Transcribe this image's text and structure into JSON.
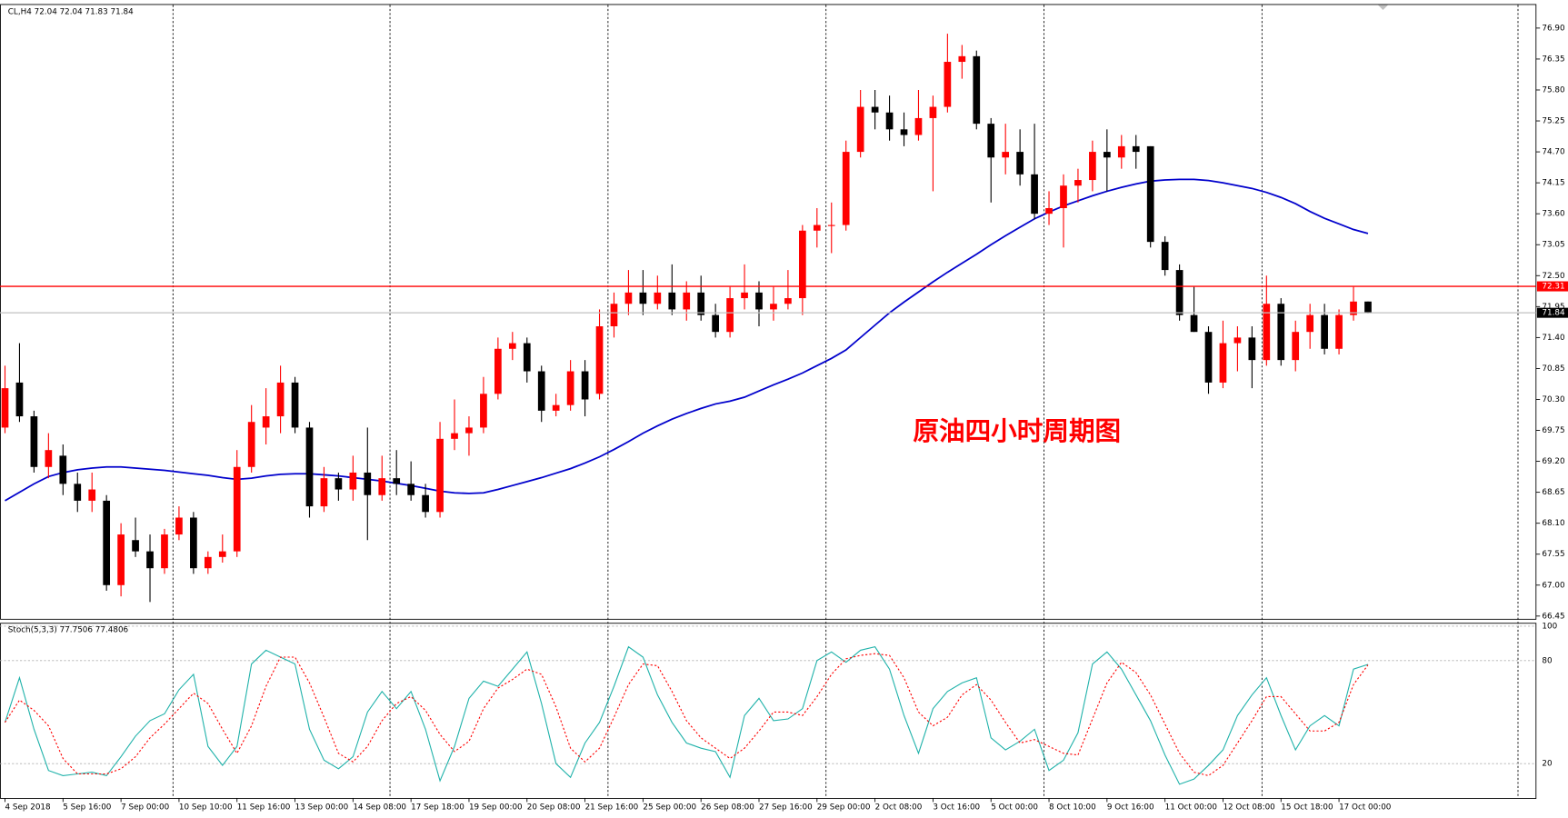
{
  "chart_data": [
    {
      "type": "candlestick",
      "title": "CL,H4 72.04 72.04 71.83 71.84",
      "annotation": "原油四小时周期图",
      "up_color": "#ff0000",
      "down_color": "#000000",
      "categories": [
        "4 Sep 2018",
        null,
        null,
        null,
        "5 Sep 16:00",
        null,
        null,
        null,
        "7 Sep 00:00",
        null,
        null,
        null,
        "10 Sep 10:00",
        null,
        null,
        null,
        "11 Sep 16:00",
        null,
        null,
        null,
        "13 Sep 00:00",
        null,
        null,
        null,
        "14 Sep 08:00",
        null,
        null,
        null,
        "17 Sep 18:00",
        null,
        null,
        null,
        "19 Sep 00:00",
        null,
        null,
        null,
        "20 Sep 08:00",
        null,
        null,
        null,
        "21 Sep 16:00",
        null,
        null,
        null,
        "25 Sep 00:00",
        null,
        null,
        null,
        "26 Sep 08:00",
        null,
        null,
        null,
        "27 Sep 16:00",
        null,
        null,
        null,
        "29 Sep 00:00",
        null,
        null,
        null,
        "2 Oct 08:00",
        null,
        null,
        null,
        "3 Oct 16:00",
        null,
        null,
        null,
        "5 Oct 00:00",
        null,
        null,
        null,
        "8 Oct 10:00",
        null,
        null,
        null,
        "9 Oct 16:00",
        null,
        null,
        null,
        "11 Oct 00:00",
        null,
        null,
        null,
        "12 Oct 08:00",
        null,
        null,
        null,
        "15 Oct 18:00",
        null,
        null,
        null,
        "17 Oct 00:00",
        null,
        null
      ],
      "ohlc": [
        [
          69.8,
          70.9,
          69.7,
          70.5
        ],
        [
          70.6,
          71.3,
          69.9,
          70.0
        ],
        [
          70.0,
          70.1,
          69.0,
          69.1
        ],
        [
          69.1,
          69.7,
          68.9,
          69.4
        ],
        [
          69.3,
          69.5,
          68.6,
          68.8
        ],
        [
          68.8,
          69.0,
          68.3,
          68.5
        ],
        [
          68.5,
          69.0,
          68.3,
          68.7
        ],
        [
          68.5,
          68.6,
          66.9,
          67.0
        ],
        [
          67.0,
          68.1,
          66.8,
          67.9
        ],
        [
          67.8,
          68.2,
          67.5,
          67.6
        ],
        [
          67.6,
          67.9,
          66.7,
          67.3
        ],
        [
          67.3,
          68.0,
          67.2,
          67.9
        ],
        [
          67.9,
          68.4,
          67.8,
          68.2
        ],
        [
          68.2,
          68.3,
          67.2,
          67.3
        ],
        [
          67.3,
          67.6,
          67.2,
          67.5
        ],
        [
          67.5,
          67.9,
          67.4,
          67.6
        ],
        [
          67.6,
          69.4,
          67.5,
          69.1
        ],
        [
          69.1,
          70.2,
          69.0,
          69.9
        ],
        [
          69.8,
          70.5,
          69.5,
          70.0
        ],
        [
          70.0,
          70.9,
          69.7,
          70.6
        ],
        [
          70.6,
          70.7,
          69.7,
          69.8
        ],
        [
          69.8,
          69.9,
          68.2,
          68.4
        ],
        [
          68.4,
          69.1,
          68.3,
          68.9
        ],
        [
          68.9,
          69.0,
          68.5,
          68.7
        ],
        [
          68.7,
          69.3,
          68.5,
          69.0
        ],
        [
          69.0,
          69.8,
          67.8,
          68.6
        ],
        [
          68.6,
          69.3,
          68.5,
          68.9
        ],
        [
          68.9,
          69.4,
          68.6,
          68.8
        ],
        [
          68.8,
          69.2,
          68.5,
          68.6
        ],
        [
          68.6,
          68.8,
          68.2,
          68.3
        ],
        [
          68.3,
          69.9,
          68.2,
          69.6
        ],
        [
          69.6,
          70.3,
          69.4,
          69.7
        ],
        [
          69.7,
          70.0,
          69.3,
          69.8
        ],
        [
          69.8,
          70.7,
          69.7,
          70.4
        ],
        [
          70.4,
          71.4,
          70.3,
          71.2
        ],
        [
          71.2,
          71.5,
          71.0,
          71.3
        ],
        [
          71.3,
          71.4,
          70.6,
          70.8
        ],
        [
          70.8,
          70.9,
          69.9,
          70.1
        ],
        [
          70.1,
          70.4,
          70.0,
          70.2
        ],
        [
          70.2,
          71.0,
          70.1,
          70.8
        ],
        [
          70.8,
          71.0,
          70.0,
          70.3
        ],
        [
          70.4,
          71.9,
          70.3,
          71.6
        ],
        [
          71.6,
          72.2,
          71.4,
          72.0
        ],
        [
          72.0,
          72.6,
          71.8,
          72.2
        ],
        [
          72.2,
          72.6,
          71.8,
          72.0
        ],
        [
          72.0,
          72.5,
          71.9,
          72.2
        ],
        [
          72.2,
          72.7,
          71.8,
          71.9
        ],
        [
          71.9,
          72.4,
          71.7,
          72.2
        ],
        [
          72.2,
          72.5,
          71.7,
          71.8
        ],
        [
          71.8,
          72.0,
          71.4,
          71.5
        ],
        [
          71.5,
          72.3,
          71.4,
          72.1
        ],
        [
          72.1,
          72.7,
          71.9,
          72.2
        ],
        [
          72.2,
          72.4,
          71.6,
          71.9
        ],
        [
          71.9,
          72.3,
          71.7,
          72.0
        ],
        [
          72.0,
          72.6,
          71.9,
          72.1
        ],
        [
          72.1,
          73.4,
          71.8,
          73.3
        ],
        [
          73.3,
          73.7,
          73.0,
          73.4
        ],
        [
          73.4,
          73.8,
          72.9,
          73.4
        ],
        [
          73.4,
          74.9,
          73.3,
          74.7
        ],
        [
          74.7,
          75.8,
          74.6,
          75.5
        ],
        [
          75.5,
          75.8,
          75.1,
          75.4
        ],
        [
          75.4,
          75.7,
          74.9,
          75.1
        ],
        [
          75.1,
          75.4,
          74.8,
          75.0
        ],
        [
          75.0,
          75.8,
          74.9,
          75.3
        ],
        [
          75.3,
          75.7,
          74.0,
          75.5
        ],
        [
          75.5,
          76.8,
          75.4,
          76.3
        ],
        [
          76.3,
          76.6,
          76.0,
          76.4
        ],
        [
          76.4,
          76.5,
          75.1,
          75.2
        ],
        [
          75.2,
          75.3,
          73.8,
          74.6
        ],
        [
          74.6,
          75.2,
          74.3,
          74.7
        ],
        [
          74.7,
          75.1,
          74.1,
          74.3
        ],
        [
          74.3,
          75.2,
          73.5,
          73.6
        ],
        [
          73.6,
          74.0,
          73.4,
          73.7
        ],
        [
          73.7,
          74.3,
          73.0,
          74.1
        ],
        [
          74.1,
          74.4,
          73.8,
          74.2
        ],
        [
          74.2,
          74.9,
          74.0,
          74.7
        ],
        [
          74.7,
          75.1,
          74.0,
          74.6
        ],
        [
          74.6,
          75.0,
          74.4,
          74.8
        ],
        [
          74.8,
          75.0,
          74.4,
          74.7
        ],
        [
          74.8,
          74.8,
          73.0,
          73.1
        ],
        [
          73.1,
          73.2,
          72.5,
          72.6
        ],
        [
          72.6,
          72.7,
          71.7,
          71.8
        ],
        [
          71.8,
          72.3,
          71.5,
          71.5
        ],
        [
          71.5,
          71.6,
          70.4,
          70.6
        ],
        [
          70.6,
          71.7,
          70.5,
          71.3
        ],
        [
          71.3,
          71.6,
          70.8,
          71.4
        ],
        [
          71.4,
          71.6,
          70.5,
          71.0
        ],
        [
          71.0,
          72.5,
          70.9,
          72.0
        ],
        [
          72.0,
          72.1,
          70.9,
          71.0
        ],
        [
          71.0,
          71.7,
          70.8,
          71.5
        ],
        [
          71.5,
          72.0,
          71.2,
          71.8
        ],
        [
          71.8,
          72.0,
          71.1,
          71.2
        ],
        [
          71.2,
          71.9,
          71.1,
          71.8
        ],
        [
          71.8,
          72.3,
          71.7,
          72.04
        ],
        [
          72.04,
          72.04,
          71.83,
          71.84
        ]
      ],
      "lines": [
        {
          "color": "#0000cc",
          "values": [
            68.5,
            68.65,
            68.8,
            68.93,
            69.0,
            69.05,
            69.08,
            69.1,
            69.1,
            69.08,
            69.06,
            69.04,
            69.01,
            68.98,
            68.95,
            68.91,
            68.88,
            68.9,
            68.94,
            68.97,
            68.98,
            68.98,
            68.96,
            68.94,
            68.91,
            68.88,
            68.85,
            68.81,
            68.77,
            68.72,
            68.67,
            68.64,
            68.63,
            68.64,
            68.7,
            68.77,
            68.84,
            68.91,
            68.99,
            69.07,
            69.17,
            69.28,
            69.41,
            69.55,
            69.7,
            69.83,
            69.95,
            70.05,
            70.14,
            70.22,
            70.27,
            70.34,
            70.45,
            70.56,
            70.66,
            70.77,
            70.9,
            71.03,
            71.18,
            71.4,
            71.62,
            71.84,
            72.03,
            72.21,
            72.39,
            72.56,
            72.72,
            72.88,
            73.05,
            73.21,
            73.36,
            73.51,
            73.63,
            73.74,
            73.83,
            73.92,
            74.0,
            74.07,
            74.13,
            74.18,
            74.2,
            74.21,
            74.21,
            74.19,
            74.15,
            74.1,
            74.05,
            73.98,
            73.89,
            73.78,
            73.64,
            73.52,
            73.42,
            73.32,
            73.25
          ]
        }
      ],
      "hlines": [
        {
          "value": 72.31,
          "color": "#ff0000",
          "box": "#ff0000"
        },
        {
          "value": 71.84,
          "color": "#c0c0c0",
          "box": "#000000"
        }
      ],
      "ylim": [
        66.42,
        77.31
      ],
      "yticks": [
        {
          "value": 76.9,
          "label": "76.90"
        },
        76.35,
        {
          "value": 75.8,
          "label": "75.80"
        },
        75.25,
        {
          "value": 74.7,
          "label": "74.70"
        },
        74.15,
        {
          "value": 73.6,
          "label": "73.60"
        },
        73.05,
        {
          "value": 72.5,
          "label": "72.50"
        },
        71.95,
        {
          "value": 71.4,
          "label": "71.40"
        },
        70.85,
        {
          "value": 70.3,
          "label": "70.30"
        },
        69.75,
        {
          "value": 69.2,
          "label": "69.20"
        },
        68.65,
        {
          "value": 68.1,
          "label": "68.10"
        },
        67.55,
        {
          "value": 67,
          "label": "67.00"
        },
        66.45
      ]
    },
    {
      "type": "line",
      "title": "Stoch(5,3,3) 77.7506 77.4806",
      "series": [
        {
          "color": "#20b2aa",
          "dash": false,
          "values": [
            44,
            70,
            40,
            16,
            13,
            14,
            15,
            13,
            24,
            36,
            45,
            49,
            63,
            72,
            30,
            19,
            30,
            78,
            86,
            82,
            78,
            40,
            22,
            17,
            24,
            50,
            62,
            52,
            62,
            40,
            10,
            30,
            58,
            68,
            65,
            75,
            85,
            55,
            20,
            12,
            32,
            44,
            65,
            88,
            82,
            60,
            44,
            32,
            29,
            27,
            12,
            48,
            58,
            45,
            46,
            52,
            80,
            85,
            79,
            86,
            88,
            75,
            48,
            26,
            52,
            62,
            67,
            70,
            35,
            28,
            33,
            40,
            16,
            22,
            38,
            78,
            85,
            75,
            60,
            45,
            25,
            8,
            11,
            19,
            28,
            48,
            60,
            70,
            48,
            28,
            42,
            48,
            42,
            75,
            77.7506
          ]
        },
        {
          "color": "#ff0000",
          "dash": true,
          "values": [
            44,
            57,
            51,
            42,
            23,
            14,
            14,
            14,
            17,
            24,
            35,
            43,
            52,
            61,
            55,
            40,
            26,
            42,
            65,
            82,
            82,
            67,
            47,
            26,
            21,
            30,
            45,
            55,
            59,
            51,
            37,
            27,
            33,
            52,
            64,
            69,
            75,
            72,
            53,
            29,
            21,
            29,
            47,
            66,
            78,
            77,
            62,
            45,
            35,
            29,
            23,
            29,
            39,
            50,
            50,
            48,
            59,
            72,
            81,
            83,
            84,
            83,
            70,
            50,
            42,
            47,
            60,
            66,
            57,
            44,
            32,
            34,
            30,
            26,
            25,
            46,
            67,
            79,
            73,
            60,
            43,
            26,
            15,
            13,
            19,
            32,
            45,
            59,
            59,
            49,
            39,
            39,
            44,
            66,
            77.4806
          ]
        }
      ],
      "ylim": [
        0,
        102
      ],
      "yticks": [
        20,
        80,
        100
      ],
      "grid": true
    }
  ]
}
